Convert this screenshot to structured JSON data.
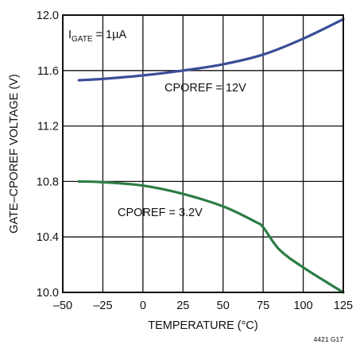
{
  "chart_data": {
    "type": "line",
    "xlabel": "TEMPERATURE (°C)",
    "ylabel": "GATE–CPOREF VOLTAGE (V)",
    "xlim": [
      -50,
      125
    ],
    "ylim": [
      10.0,
      12.0
    ],
    "x_ticks": [
      "–50",
      "–25",
      "0",
      "25",
      "50",
      "75",
      "100",
      "125"
    ],
    "y_ticks": [
      "10.0",
      "10.4",
      "10.8",
      "11.2",
      "11.6",
      "12.0"
    ],
    "grid": true,
    "condition": {
      "prefix": "I",
      "subscript": "GATE",
      "suffix": " = 1µA"
    },
    "figure_id": "4421 G17",
    "series": [
      {
        "label": "CPOREF = 12V",
        "color": "#3a4e97",
        "x": [
          -40,
          -25,
          0,
          25,
          50,
          75,
          100,
          125
        ],
        "y": [
          11.53,
          11.54,
          11.565,
          11.6,
          11.645,
          11.715,
          11.83,
          11.97
        ]
      },
      {
        "label": "CPOREF = 3.2V",
        "color": "#2c7d45",
        "x": [
          -40,
          -25,
          0,
          25,
          50,
          70,
          75,
          85,
          100,
          125
        ],
        "y": [
          10.8,
          10.795,
          10.77,
          10.71,
          10.62,
          10.51,
          10.47,
          10.31,
          10.18,
          10.0
        ]
      }
    ]
  }
}
